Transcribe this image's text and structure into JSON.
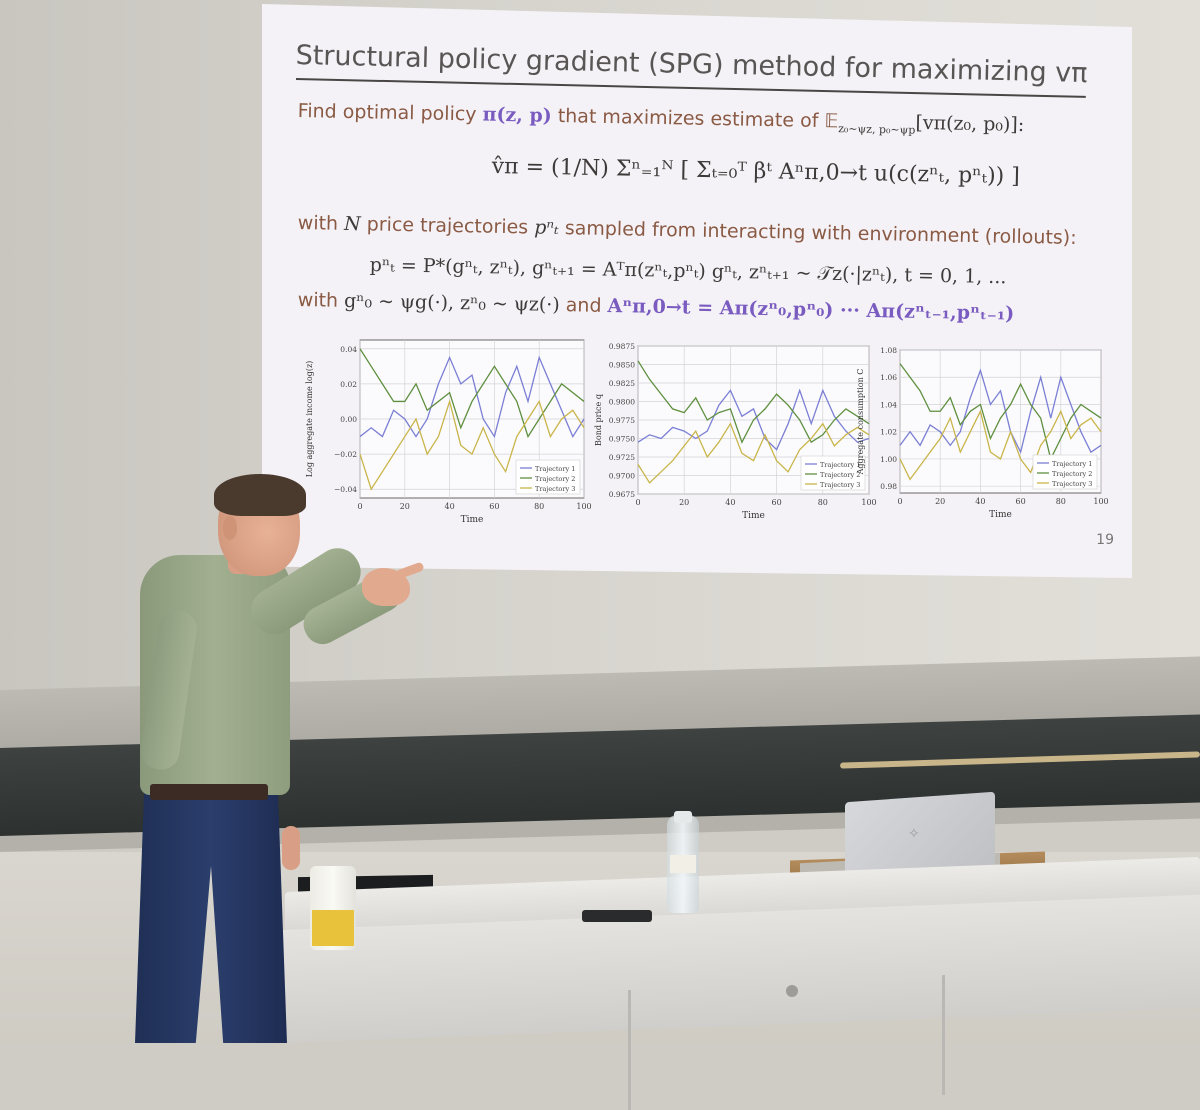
{
  "slide": {
    "title": "Structural policy gradient (SPG) method for maximizing vπ",
    "line1_a": "Find optimal policy ",
    "line1_pi": "π(z, p)",
    "line1_b": " that maximizes estimate of 𝔼",
    "line1_sub": "z₀~ψz, p₀~ψp",
    "line1_c": "[vπ(z₀, p₀)]:",
    "line2": "v̂π = (1/N) Σⁿ₌₁ᴺ [ Σₜ₌₀ᵀ βᵗ Aⁿπ,0→t u(c(zⁿₜ, pⁿₜ)) ]",
    "line3_a": "with ",
    "line3_n": "N",
    "line3_b": " price trajectories ",
    "line3_p": "pⁿₜ",
    "line3_c": " sampled from interacting with environment (rollouts):",
    "line4": "pⁿₜ = P*(gⁿₜ, zⁿₜ),   gⁿₜ₊₁ = Aᵀπ(zⁿₜ,pⁿₜ) gⁿₜ,   zⁿₜ₊₁ ~ 𝒯z(·|zⁿₜ),   t = 0, 1, ...",
    "line5_a": "with ",
    "line5_b": "gⁿ₀ ~ ψg(·), zⁿ₀ ~ ψz(·)",
    "line5_c": " and ",
    "line5_d": "Aⁿπ,0→t = Aπ(zⁿ₀,pⁿ₀) ··· Aπ(zⁿₜ₋₁,pⁿₜ₋₁)",
    "page_number": "19"
  },
  "colors": {
    "trajectory_1": "#7b7fd4",
    "trajectory_2": "#5f8f3e",
    "trajectory_3": "#c9b54a",
    "accent_purple": "#7a5cc1",
    "text_brown": "#8a5a44"
  },
  "chart_data": [
    {
      "type": "line",
      "ylabel": "Log aggregate income log(z)",
      "xlabel": "Time",
      "xlim": [
        0,
        100
      ],
      "ylim": [
        -0.045,
        0.045
      ],
      "xticks": [
        0,
        20,
        40,
        60,
        80,
        100
      ],
      "yticks": [
        -0.04,
        -0.02,
        0.0,
        0.02,
        0.04
      ],
      "ytick_labels": [
        "−0.04",
        "−0.02",
        "0.00",
        "0.02",
        "0.04"
      ],
      "grid": true,
      "legend": "bottom-right",
      "x": [
        0,
        5,
        10,
        15,
        20,
        25,
        30,
        35,
        40,
        45,
        50,
        55,
        60,
        65,
        70,
        75,
        80,
        85,
        90,
        95,
        100
      ],
      "series": [
        {
          "name": "Trajectory 1",
          "values": [
            -0.01,
            -0.005,
            -0.01,
            0.005,
            0.0,
            -0.01,
            0.0,
            0.02,
            0.035,
            0.02,
            0.025,
            0.0,
            -0.01,
            0.015,
            0.03,
            0.01,
            0.035,
            0.02,
            0.005,
            -0.01,
            0.0
          ]
        },
        {
          "name": "Trajectory 2",
          "values": [
            0.04,
            0.03,
            0.02,
            0.01,
            0.01,
            0.02,
            0.005,
            0.01,
            0.015,
            -0.005,
            0.01,
            0.02,
            0.03,
            0.02,
            0.01,
            -0.01,
            0.0,
            0.01,
            0.02,
            0.015,
            0.01
          ]
        },
        {
          "name": "Trajectory 3",
          "values": [
            -0.02,
            -0.04,
            -0.03,
            -0.02,
            -0.01,
            0.0,
            -0.02,
            -0.01,
            0.01,
            -0.015,
            -0.02,
            -0.005,
            -0.02,
            -0.03,
            -0.01,
            0.0,
            0.01,
            -0.01,
            0.0,
            0.005,
            -0.005
          ]
        }
      ]
    },
    {
      "type": "line",
      "ylabel": "Bond price q",
      "xlabel": "Time",
      "xlim": [
        0,
        100
      ],
      "ylim": [
        0.9675,
        0.9875
      ],
      "xticks": [
        0,
        20,
        40,
        60,
        80,
        100
      ],
      "yticks": [
        0.9675,
        0.97,
        0.9725,
        0.975,
        0.9775,
        0.98,
        0.9825,
        0.985,
        0.9875
      ],
      "ytick_labels": [
        "0.9675",
        "0.9700",
        "0.9725",
        "0.9750",
        "0.9775",
        "0.9800",
        "0.9825",
        "0.9850",
        "0.9875"
      ],
      "grid": true,
      "legend": "bottom-right",
      "x": [
        0,
        5,
        10,
        15,
        20,
        25,
        30,
        35,
        40,
        45,
        50,
        55,
        60,
        65,
        70,
        75,
        80,
        85,
        90,
        95,
        100
      ],
      "series": [
        {
          "name": "Trajectory 1",
          "values": [
            0.9745,
            0.9755,
            0.975,
            0.9765,
            0.976,
            0.975,
            0.976,
            0.9795,
            0.9815,
            0.978,
            0.979,
            0.975,
            0.9735,
            0.977,
            0.9815,
            0.977,
            0.9815,
            0.978,
            0.976,
            0.9745,
            0.975
          ]
        },
        {
          "name": "Trajectory 2",
          "values": [
            0.9855,
            0.983,
            0.981,
            0.979,
            0.9785,
            0.9805,
            0.9775,
            0.9785,
            0.979,
            0.9745,
            0.9775,
            0.979,
            0.981,
            0.9795,
            0.9775,
            0.9745,
            0.9755,
            0.9775,
            0.979,
            0.978,
            0.977
          ]
        },
        {
          "name": "Trajectory 3",
          "values": [
            0.9715,
            0.969,
            0.9705,
            0.972,
            0.974,
            0.976,
            0.9725,
            0.9745,
            0.977,
            0.973,
            0.972,
            0.9755,
            0.972,
            0.9705,
            0.9735,
            0.975,
            0.977,
            0.974,
            0.9755,
            0.9765,
            0.9755
          ]
        }
      ]
    },
    {
      "type": "line",
      "ylabel": "Aggregate consumption C",
      "xlabel": "Time",
      "xlim": [
        0,
        100
      ],
      "ylim": [
        0.975,
        1.08
      ],
      "xticks": [
        0,
        20,
        40,
        60,
        80,
        100
      ],
      "yticks": [
        0.98,
        1.0,
        1.02,
        1.04,
        1.06,
        1.08
      ],
      "ytick_labels": [
        "0.98",
        "1.00",
        "1.02",
        "1.04",
        "1.06",
        "1.08"
      ],
      "grid": true,
      "legend": "bottom-right",
      "x": [
        0,
        5,
        10,
        15,
        20,
        25,
        30,
        35,
        40,
        45,
        50,
        55,
        60,
        65,
        70,
        75,
        80,
        85,
        90,
        95,
        100
      ],
      "series": [
        {
          "name": "Trajectory 1",
          "values": [
            1.01,
            1.02,
            1.01,
            1.025,
            1.02,
            1.01,
            1.02,
            1.045,
            1.065,
            1.04,
            1.05,
            1.02,
            1.005,
            1.035,
            1.06,
            1.03,
            1.06,
            1.04,
            1.02,
            1.005,
            1.01
          ]
        },
        {
          "name": "Trajectory 2",
          "values": [
            1.07,
            1.06,
            1.05,
            1.035,
            1.035,
            1.045,
            1.025,
            1.035,
            1.04,
            1.015,
            1.03,
            1.04,
            1.055,
            1.04,
            1.03,
            1.0,
            1.015,
            1.03,
            1.04,
            1.035,
            1.03
          ]
        },
        {
          "name": "Trajectory 3",
          "values": [
            1.0,
            0.985,
            0.995,
            1.005,
            1.015,
            1.03,
            1.005,
            1.02,
            1.035,
            1.005,
            1.0,
            1.02,
            1.0,
            0.99,
            1.01,
            1.02,
            1.035,
            1.015,
            1.025,
            1.03,
            1.02
          ]
        }
      ]
    }
  ]
}
